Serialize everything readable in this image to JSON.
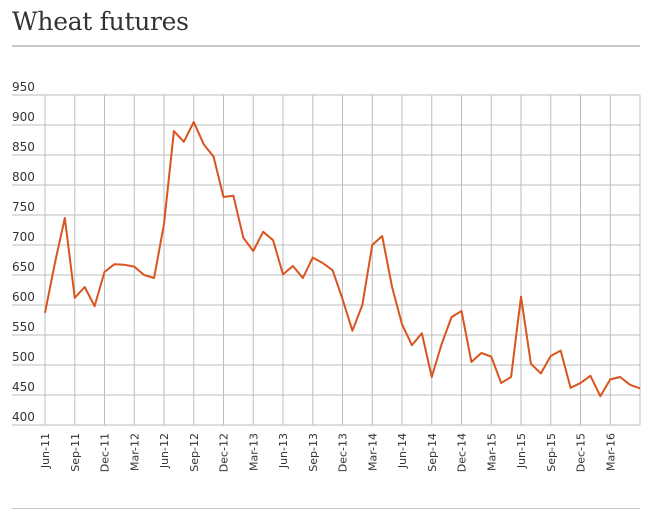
{
  "title": "Wheat futures",
  "chart_data": {
    "type": "line",
    "title": "Wheat futures",
    "xlabel": "",
    "ylabel": "",
    "ylim": [
      400,
      950
    ],
    "yticks": [
      400,
      450,
      500,
      550,
      600,
      650,
      700,
      750,
      800,
      850,
      900,
      950
    ],
    "grid": true,
    "color": "#d9541e",
    "x_tick_labels": [
      "Jun-11",
      "Sep-11",
      "Dec-11",
      "Mar-12",
      "Jun-12",
      "Sep-12",
      "Dec-12",
      "Mar-13",
      "Jun-13",
      "Sep-13",
      "Dec-13",
      "Mar-14",
      "Jun-14",
      "Sep-14",
      "Dec-14",
      "Mar-15",
      "Jun-15",
      "Sep-15",
      "Dec-15",
      "Mar-16"
    ],
    "series": [
      {
        "values": [
          587,
          670,
          745,
          612,
          630,
          598,
          655,
          668,
          667,
          664,
          650,
          645,
          735,
          890,
          872,
          905,
          868,
          847,
          780,
          782,
          712,
          690,
          722,
          708,
          651,
          665,
          645,
          679,
          670,
          658,
          610,
          557,
          600,
          700,
          715,
          630,
          568,
          533,
          553,
          480,
          535,
          580,
          590,
          505,
          520,
          514,
          470,
          480,
          614,
          502,
          486,
          515,
          524,
          462,
          470,
          482,
          448,
          476,
          480,
          467,
          461
        ]
      }
    ]
  }
}
